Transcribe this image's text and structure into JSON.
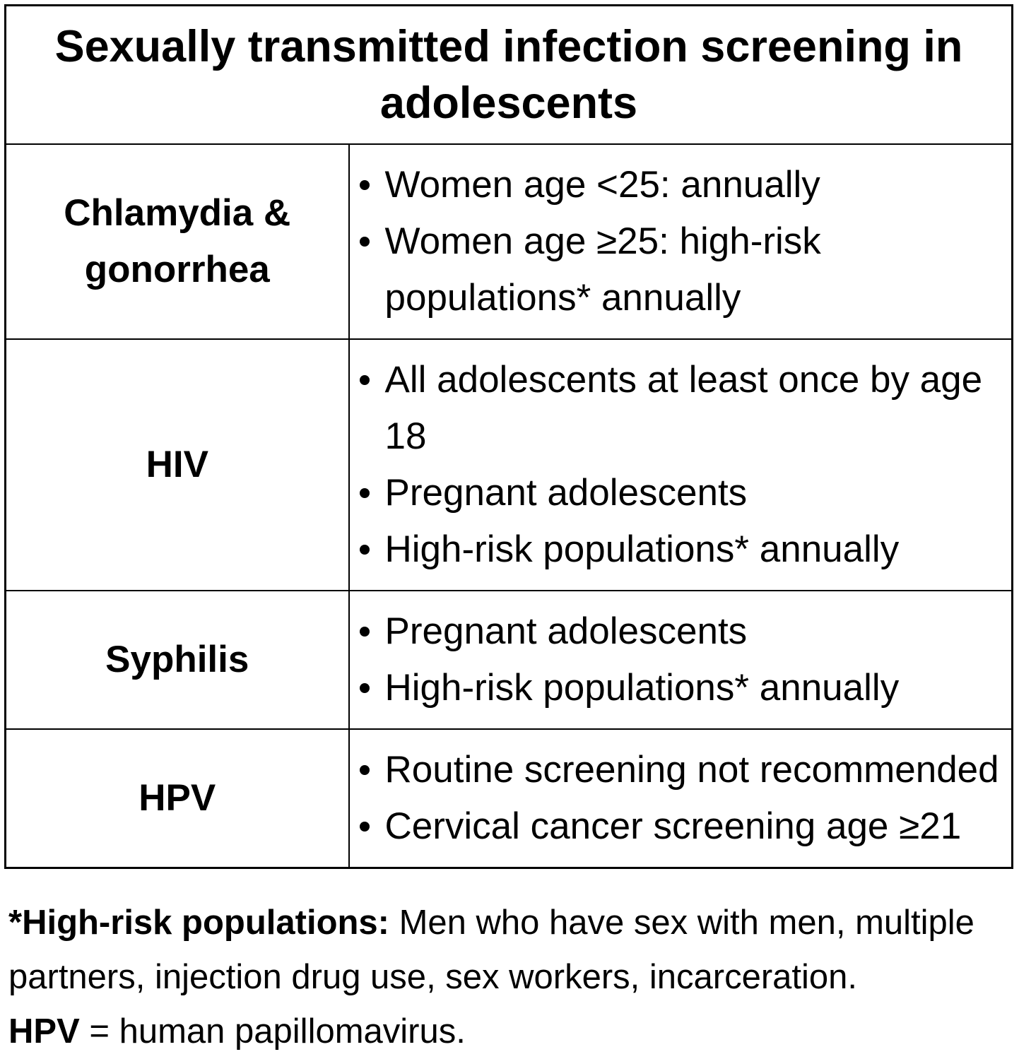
{
  "title": "Sexually transmitted infection screening in adolescents",
  "table": {
    "rows": [
      {
        "label": "Chlamydia & gonorrhea",
        "bullets": [
          "Women age <25: annually",
          "Women age ≥25: high-risk populations* annually"
        ]
      },
      {
        "label": "HIV",
        "bullets": [
          "All adolescents at least once by age 18",
          "Pregnant adolescents",
          "High-risk populations* annually"
        ]
      },
      {
        "label": "Syphilis",
        "bullets": [
          "Pregnant adolescents",
          "High-risk populations* annually"
        ]
      },
      {
        "label": "HPV",
        "bullets": [
          "Routine screening not recommended",
          "Cervical cancer screening age ≥21"
        ]
      }
    ]
  },
  "footnotes": {
    "highrisk_label": "*High-risk populations:",
    "highrisk_text": " Men who have sex with men, multiple partners, injection drug use, sex workers, incarceration.",
    "hpv_label": "HPV",
    "hpv_text": " = human papillomavirus."
  },
  "colors": {
    "text": "#000000",
    "background": "#ffffff",
    "border": "#000000"
  }
}
